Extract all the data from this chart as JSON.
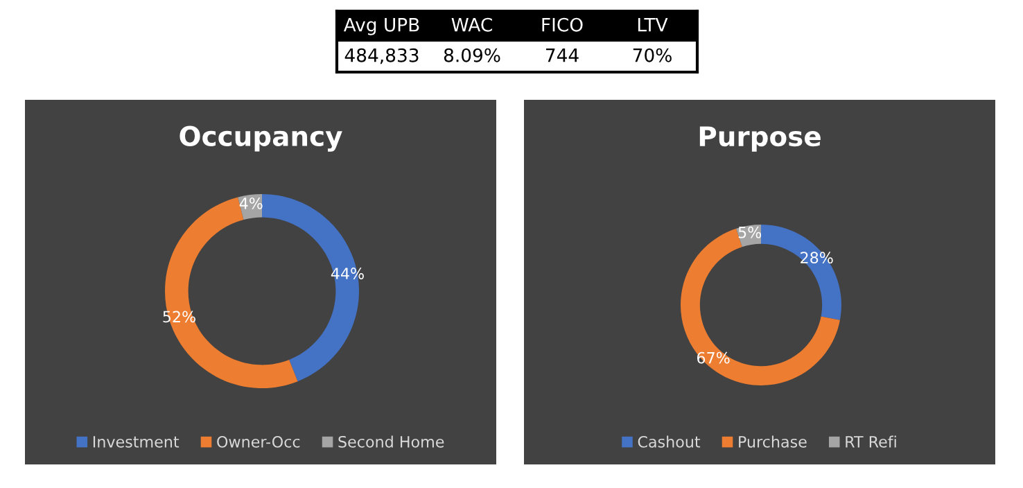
{
  "chart_data": [
    {
      "type": "other",
      "categories": [
        "Avg UPB",
        "WAC",
        "FICO",
        "LTV"
      ],
      "annotations": [
        "484,833",
        "8.09%",
        "744",
        "70%"
      ]
    },
    {
      "type": "donut",
      "title": "Occupancy",
      "categories": [
        "Investment",
        "Owner-Occ",
        "Second Home"
      ],
      "values": [
        44,
        52,
        4
      ],
      "value_labels": [
        "44%",
        "52%",
        "4%"
      ],
      "colors": [
        "#4472c4",
        "#ed7d31",
        "#a5a5a5"
      ],
      "legend": "bottom"
    },
    {
      "type": "donut",
      "title": "Purpose",
      "categories": [
        "Cashout",
        "Purchase",
        "RT Refi"
      ],
      "values": [
        28,
        67,
        5
      ],
      "value_labels": [
        "28%",
        "67%",
        "5%"
      ],
      "colors": [
        "#4472c4",
        "#ed7d31",
        "#a5a5a5"
      ],
      "legend": "bottom"
    }
  ]
}
